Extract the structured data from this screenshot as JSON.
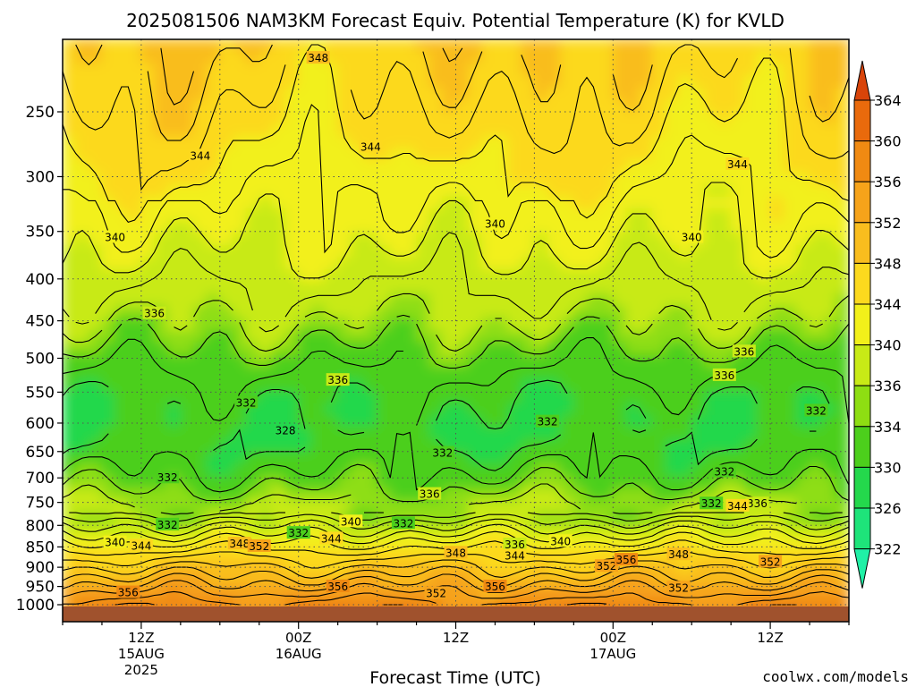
{
  "chart_data": {
    "type": "heatmap",
    "title": "2025081506 NAM3KM Forecast Equiv. Potential Temperature (K) for KVLD",
    "xlabel": "Forecast Time (UTC)",
    "ylabel": "",
    "y_axis": {
      "scale": "log-pressure",
      "ylim": [
        1000,
        200
      ],
      "ticks": [
        "250",
        "300",
        "350",
        "400",
        "450",
        "500",
        "550",
        "600",
        "650",
        "700",
        "750",
        "800",
        "850",
        "900",
        "950",
        "1000"
      ]
    },
    "x_axis": {
      "ticks": [
        {
          "hour": "12Z",
          "date": "15AUG",
          "year": "2025",
          "fh": 6
        },
        {
          "hour": "00Z",
          "date": "16AUG",
          "year": "",
          "fh": 18
        },
        {
          "hour": "12Z",
          "date": "",
          "year": "",
          "fh": 30
        },
        {
          "hour": "00Z",
          "date": "17AUG",
          "year": "",
          "fh": 42
        },
        {
          "hour": "12Z",
          "date": "",
          "year": "",
          "fh": 54
        }
      ],
      "xlim": [
        0,
        60
      ]
    },
    "grid": true,
    "colorbar": {
      "placement": "right",
      "levels": [
        "364",
        "360",
        "356",
        "352",
        "348",
        "344",
        "340",
        "336",
        "334",
        "330",
        "326",
        "322"
      ],
      "colors": [
        "#d8440a",
        "#e96a0c",
        "#f08a12",
        "#f6a31a",
        "#f9bd1e",
        "#fcd91e",
        "#f2f01a",
        "#c8ea16",
        "#8ede12",
        "#4ccf1c",
        "#24d84c",
        "#1ee47a",
        "#20f0a6"
      ]
    },
    "contour_labels": [
      {
        "value": "348",
        "t": 19.5,
        "p": 215
      },
      {
        "value": "344",
        "t": 10.5,
        "p": 283
      },
      {
        "value": "344",
        "t": 23.5,
        "p": 276
      },
      {
        "value": "344",
        "t": 51.5,
        "p": 290
      },
      {
        "value": "340",
        "t": 4,
        "p": 356
      },
      {
        "value": "340",
        "t": 33,
        "p": 343
      },
      {
        "value": "340",
        "t": 48,
        "p": 356
      },
      {
        "value": "336",
        "t": 7,
        "p": 441
      },
      {
        "value": "336",
        "t": 21,
        "p": 532
      },
      {
        "value": "336",
        "t": 52,
        "p": 491
      },
      {
        "value": "336",
        "t": 50.5,
        "p": 525
      },
      {
        "value": "336",
        "t": 28,
        "p": 733
      },
      {
        "value": "336",
        "t": 34.5,
        "p": 845
      },
      {
        "value": "336",
        "t": 53,
        "p": 753
      },
      {
        "value": "332",
        "t": 14,
        "p": 567
      },
      {
        "value": "332",
        "t": 37,
        "p": 598
      },
      {
        "value": "332",
        "t": 29,
        "p": 653
      },
      {
        "value": "332",
        "t": 8,
        "p": 700
      },
      {
        "value": "332",
        "t": 8,
        "p": 799
      },
      {
        "value": "332",
        "t": 18,
        "p": 818
      },
      {
        "value": "332",
        "t": 26,
        "p": 796
      },
      {
        "value": "332",
        "t": 50.5,
        "p": 688
      },
      {
        "value": "332",
        "t": 57.5,
        "p": 580
      },
      {
        "value": "332",
        "t": 49.5,
        "p": 753
      },
      {
        "value": "328",
        "t": 17,
        "p": 613
      },
      {
        "value": "344",
        "t": 51.5,
        "p": 758
      },
      {
        "value": "340",
        "t": 22,
        "p": 792
      },
      {
        "value": "340",
        "t": 4,
        "p": 840
      },
      {
        "value": "340",
        "t": 38,
        "p": 837
      },
      {
        "value": "344",
        "t": 6,
        "p": 848
      },
      {
        "value": "344",
        "t": 20.5,
        "p": 831
      },
      {
        "value": "344",
        "t": 34.5,
        "p": 872
      },
      {
        "value": "348",
        "t": 13.5,
        "p": 843
      },
      {
        "value": "348",
        "t": 30,
        "p": 865
      },
      {
        "value": "348",
        "t": 47,
        "p": 869
      },
      {
        "value": "352",
        "t": 15,
        "p": 849
      },
      {
        "value": "352",
        "t": 41.5,
        "p": 898
      },
      {
        "value": "352",
        "t": 54,
        "p": 887
      },
      {
        "value": "352",
        "t": 28.5,
        "p": 969
      },
      {
        "value": "352",
        "t": 47,
        "p": 954
      },
      {
        "value": "356",
        "t": 21,
        "p": 951
      },
      {
        "value": "356",
        "t": 33,
        "p": 951
      },
      {
        "value": "356",
        "t": 43,
        "p": 882
      },
      {
        "value": "356",
        "t": 5,
        "p": 967
      }
    ]
  },
  "footer": {
    "watermark": "coolwx.com/models"
  },
  "colors": {
    "ground": "#a0522d",
    "watermark": "#cc0000",
    "grid": "#555555"
  }
}
